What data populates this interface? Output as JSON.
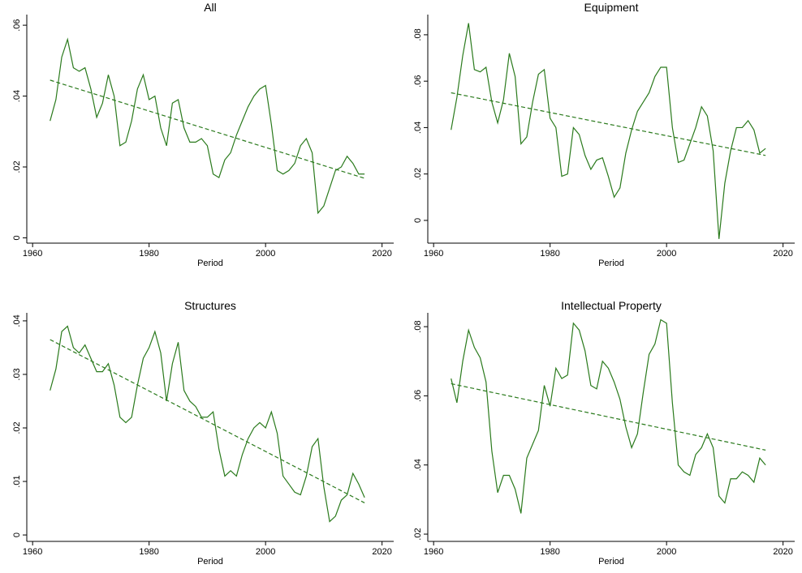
{
  "chart_data": [
    {
      "type": "line",
      "title": "All",
      "xlabel": "Period",
      "x": [
        1963,
        1964,
        1965,
        1966,
        1967,
        1968,
        1969,
        1970,
        1971,
        1972,
        1973,
        1974,
        1975,
        1976,
        1977,
        1978,
        1979,
        1980,
        1981,
        1982,
        1983,
        1984,
        1985,
        1986,
        1987,
        1988,
        1989,
        1990,
        1991,
        1992,
        1993,
        1994,
        1995,
        1996,
        1997,
        1998,
        1999,
        2000,
        2001,
        2002,
        2003,
        2004,
        2005,
        2006,
        2007,
        2008,
        2009,
        2010,
        2011,
        2012,
        2013,
        2014,
        2015,
        2016,
        2017
      ],
      "series": [
        {
          "color": "#2a7a1c",
          "style": "solid",
          "values": [
            0.033,
            0.039,
            0.051,
            0.056,
            0.048,
            0.047,
            0.048,
            0.042,
            0.034,
            0.038,
            0.046,
            0.04,
            0.026,
            0.027,
            0.033,
            0.042,
            0.046,
            0.039,
            0.04,
            0.031,
            0.026,
            0.038,
            0.039,
            0.031,
            0.027,
            0.027,
            0.028,
            0.026,
            0.018,
            0.017,
            0.022,
            0.024,
            0.029,
            0.033,
            0.037,
            0.04,
            0.042,
            0.043,
            0.032,
            0.019,
            0.018,
            0.019,
            0.021,
            0.026,
            0.028,
            0.024,
            0.007,
            0.009,
            0.014,
            0.019,
            0.02,
            0.023,
            0.021,
            0.018,
            0.018
          ]
        },
        {
          "color": "#2a7a1c",
          "style": "dashed",
          "x": [
            1963,
            2017
          ],
          "values": [
            0.0445,
            0.0168
          ]
        }
      ],
      "xlim": [
        1959,
        2022
      ],
      "xticks": [
        1960,
        1980,
        2000,
        2020
      ],
      "ylim": [
        -0.0015,
        0.063
      ],
      "yticks": [
        0,
        {
          "value": 0.02,
          "label": ".02"
        },
        {
          "value": 0.04,
          "label": ".04"
        },
        {
          "value": 0.06,
          "label": ".06"
        }
      ]
    },
    {
      "type": "line",
      "title": "Equipment",
      "xlabel": "Period",
      "x": [
        1963,
        1964,
        1965,
        1966,
        1967,
        1968,
        1969,
        1970,
        1971,
        1972,
        1973,
        1974,
        1975,
        1976,
        1977,
        1978,
        1979,
        1980,
        1981,
        1982,
        1983,
        1984,
        1985,
        1986,
        1987,
        1988,
        1989,
        1990,
        1991,
        1992,
        1993,
        1994,
        1995,
        1996,
        1997,
        1998,
        1999,
        2000,
        2001,
        2002,
        2003,
        2004,
        2005,
        2006,
        2007,
        2008,
        2009,
        2010,
        2011,
        2012,
        2013,
        2014,
        2015,
        2016,
        2017
      ],
      "series": [
        {
          "color": "#2a7a1c",
          "style": "solid",
          "values": [
            0.039,
            0.053,
            0.071,
            0.085,
            0.065,
            0.064,
            0.066,
            0.051,
            0.042,
            0.052,
            0.072,
            0.062,
            0.033,
            0.036,
            0.051,
            0.063,
            0.065,
            0.044,
            0.04,
            0.019,
            0.02,
            0.04,
            0.037,
            0.028,
            0.022,
            0.026,
            0.027,
            0.019,
            0.01,
            0.014,
            0.029,
            0.039,
            0.047,
            0.051,
            0.055,
            0.062,
            0.066,
            0.066,
            0.04,
            0.025,
            0.026,
            0.033,
            0.04,
            0.049,
            0.045,
            0.03,
            -0.008,
            0.016,
            0.03,
            0.04,
            0.04,
            0.043,
            0.039,
            0.029,
            0.031
          ]
        },
        {
          "color": "#2a7a1c",
          "style": "dashed",
          "x": [
            1963,
            2017
          ],
          "values": [
            0.055,
            0.028
          ]
        }
      ],
      "xlim": [
        1959,
        2022
      ],
      "xticks": [
        1960,
        1980,
        2000,
        2020
      ],
      "ylim": [
        -0.0098,
        0.0887
      ],
      "yticks": [
        0,
        {
          "value": 0.02,
          "label": ".02"
        },
        {
          "value": 0.04,
          "label": ".04"
        },
        {
          "value": 0.06,
          "label": ".06"
        },
        {
          "value": 0.08,
          "label": ".08"
        }
      ]
    },
    {
      "type": "line",
      "title": "Structures",
      "xlabel": "Period",
      "x": [
        1963,
        1964,
        1965,
        1966,
        1967,
        1968,
        1969,
        1970,
        1971,
        1972,
        1973,
        1974,
        1975,
        1976,
        1977,
        1978,
        1979,
        1980,
        1981,
        1982,
        1983,
        1984,
        1985,
        1986,
        1987,
        1988,
        1989,
        1990,
        1991,
        1992,
        1993,
        1994,
        1995,
        1996,
        1997,
        1998,
        1999,
        2000,
        2001,
        2002,
        2003,
        2004,
        2005,
        2006,
        2007,
        2008,
        2009,
        2010,
        2011,
        2012,
        2013,
        2014,
        2015,
        2016,
        2017
      ],
      "series": [
        {
          "color": "#2a7a1c",
          "style": "solid",
          "values": [
            0.027,
            0.031,
            0.038,
            0.039,
            0.035,
            0.034,
            0.0355,
            0.033,
            0.0305,
            0.0305,
            0.032,
            0.028,
            0.022,
            0.021,
            0.022,
            0.028,
            0.033,
            0.035,
            0.038,
            0.034,
            0.025,
            0.032,
            0.036,
            0.027,
            0.025,
            0.024,
            0.022,
            0.022,
            0.023,
            0.016,
            0.011,
            0.012,
            0.011,
            0.015,
            0.018,
            0.02,
            0.021,
            0.02,
            0.023,
            0.019,
            0.011,
            0.0095,
            0.008,
            0.0075,
            0.011,
            0.0165,
            0.018,
            0.009,
            0.0025,
            0.0035,
            0.0065,
            0.0075,
            0.0115,
            0.0095,
            0.007
          ]
        },
        {
          "color": "#2a7a1c",
          "style": "dashed",
          "x": [
            1963,
            2017
          ],
          "values": [
            0.0365,
            0.006
          ]
        }
      ],
      "xlim": [
        1959,
        2022
      ],
      "xticks": [
        1960,
        1980,
        2000,
        2020
      ],
      "ylim": [
        -0.0012,
        0.0415
      ],
      "yticks": [
        0,
        {
          "value": 0.01,
          "label": ".01"
        },
        {
          "value": 0.02,
          "label": ".02"
        },
        {
          "value": 0.03,
          "label": ".03"
        },
        {
          "value": 0.04,
          "label": ".04"
        }
      ]
    },
    {
      "type": "line",
      "title": "Intellectual Property",
      "xlabel": "Period",
      "x": [
        1963,
        1964,
        1965,
        1966,
        1967,
        1968,
        1969,
        1970,
        1971,
        1972,
        1973,
        1974,
        1975,
        1976,
        1977,
        1978,
        1979,
        1980,
        1981,
        1982,
        1983,
        1984,
        1985,
        1986,
        1987,
        1988,
        1989,
        1990,
        1991,
        1992,
        1993,
        1994,
        1995,
        1996,
        1997,
        1998,
        1999,
        2000,
        2001,
        2002,
        2003,
        2004,
        2005,
        2006,
        2007,
        2008,
        2009,
        2010,
        2011,
        2012,
        2013,
        2014,
        2015,
        2016,
        2017
      ],
      "series": [
        {
          "color": "#2a7a1c",
          "style": "solid",
          "values": [
            0.065,
            0.058,
            0.07,
            0.079,
            0.074,
            0.071,
            0.064,
            0.044,
            0.032,
            0.037,
            0.037,
            0.033,
            0.026,
            0.042,
            0.046,
            0.05,
            0.063,
            0.057,
            0.068,
            0.065,
            0.066,
            0.081,
            0.079,
            0.073,
            0.063,
            0.062,
            0.07,
            0.068,
            0.064,
            0.059,
            0.051,
            0.045,
            0.049,
            0.061,
            0.072,
            0.075,
            0.082,
            0.081,
            0.058,
            0.04,
            0.038,
            0.037,
            0.043,
            0.045,
            0.049,
            0.045,
            0.031,
            0.029,
            0.036,
            0.036,
            0.038,
            0.037,
            0.035,
            0.042,
            0.04
          ]
        },
        {
          "color": "#2a7a1c",
          "style": "dashed",
          "x": [
            1963,
            2017
          ],
          "values": [
            0.0635,
            0.0443
          ]
        }
      ],
      "xlim": [
        1959,
        2022
      ],
      "xticks": [
        1960,
        1980,
        2000,
        2020
      ],
      "ylim": [
        0.0179,
        0.084
      ],
      "yticks": [
        {
          "value": 0.02,
          "label": ".02"
        },
        {
          "value": 0.04,
          "label": ".04"
        },
        {
          "value": 0.06,
          "label": ".06"
        },
        {
          "value": 0.08,
          "label": ".08"
        }
      ]
    }
  ]
}
